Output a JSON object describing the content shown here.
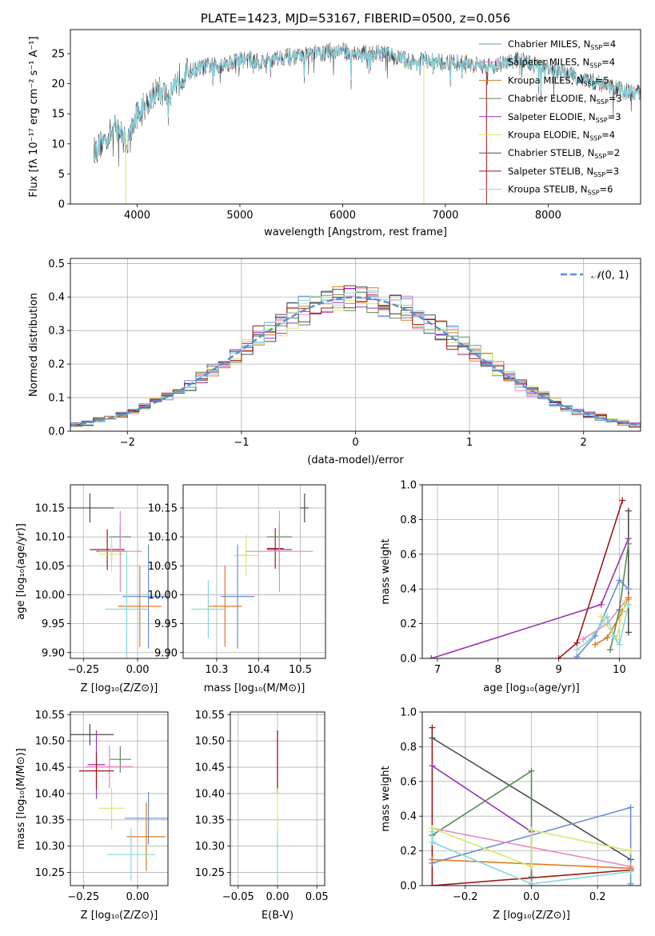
{
  "colors": {
    "Chabrier MILES": "#6b8ed6",
    "Salpeter MILES": "#e58ac0",
    "Kroupa MILES": "#e07820",
    "Chabrier ELODIE": "#5a8a5a",
    "Salpeter ELODIE": "#9a35b4",
    "Kroupa ELODIE": "#d8e86a",
    "Chabrier STELIB": "#4d4d4d",
    "Salpeter STELIB": "#a01818",
    "Kroupa STELIB": "#84d8dc",
    "gaussian": "#5a8fd6"
  },
  "chart_data": [
    {
      "id": "spectrum",
      "type": "line",
      "title": "PLATE=1423, MJD=53167, FIBERID=0500, z=0.056",
      "xlabel": "wavelength [Angstrom, rest frame]",
      "ylabel": "Flux [fλ 10⁻¹⁷ erg cm⁻² s⁻¹ A⁻¹]",
      "xlim": [
        3350,
        8900
      ],
      "ylim": [
        0,
        29
      ],
      "xticks": [
        4000,
        5000,
        6000,
        7000,
        8000
      ],
      "yticks": [
        0,
        5,
        10,
        15,
        20,
        25
      ],
      "grid": false,
      "legend_position": "top-right",
      "legend": [
        {
          "label": "Chabrier MILES, N_SSP=4",
          "base": "Chabrier MILES, N",
          "sub": "SSP",
          "tail": "=4",
          "color": "#6b8ed6"
        },
        {
          "label": "Salpeter MILES, N_SSP=4",
          "base": "Salpeter MILES, N",
          "sub": "SSP",
          "tail": "=4",
          "color": "#e58ac0"
        },
        {
          "label": "Kroupa MILES, N_SSP=5",
          "base": "Kroupa MILES, N",
          "sub": "SSP",
          "tail": "=5",
          "color": "#e07820"
        },
        {
          "label": "Chabrier ELODIE, N_SSP=3",
          "base": "Chabrier ELODIE, N",
          "sub": "SSP",
          "tail": "=3",
          "color": "#5a8a5a"
        },
        {
          "label": "Salpeter ELODIE, N_SSP=3",
          "base": "Salpeter ELODIE, N",
          "sub": "SSP",
          "tail": "=3",
          "color": "#9a35b4"
        },
        {
          "label": "Kroupa ELODIE, N_SSP=4",
          "base": "Kroupa ELODIE, N",
          "sub": "SSP",
          "tail": "=4",
          "color": "#d8e86a"
        },
        {
          "label": "Chabrier STELIB, N_SSP=2",
          "base": "Chabrier STELIB, N",
          "sub": "SSP",
          "tail": "=2",
          "color": "#4d4d4d"
        },
        {
          "label": "Salpeter STELIB, N_SSP=3",
          "base": "Salpeter STELIB, N",
          "sub": "SSP",
          "tail": "=3",
          "color": "#a01818"
        },
        {
          "label": "Kroupa STELIB, N_SSP=6",
          "base": "Kroupa STELIB, N",
          "sub": "SSP",
          "tail": "=6",
          "color": "#84d8dc"
        }
      ],
      "continuum_wavelength": [
        3600,
        3700,
        3800,
        3900,
        4000,
        4100,
        4200,
        4300,
        4400,
        4500,
        4600,
        4700,
        4800,
        4900,
        5000,
        5100,
        5200,
        5300,
        5400,
        5500,
        5600,
        5700,
        5800,
        5900,
        6000,
        6100,
        6200,
        6300,
        6400,
        6500,
        6600,
        6700,
        6800,
        6900,
        7000,
        7100,
        7200,
        7300,
        7400,
        7500,
        7600,
        7700,
        7800,
        7900,
        8000,
        8100,
        8200,
        8300,
        8400,
        8500,
        8600,
        8700,
        8800
      ],
      "continuum_flux": [
        9,
        11,
        13,
        10,
        15,
        17,
        19,
        18,
        21,
        22,
        22.5,
        23,
        23,
        23.5,
        24,
        24,
        23.5,
        24,
        24.5,
        24.5,
        24.5,
        25,
        25,
        25.5,
        25.5,
        25,
        25,
        25,
        25,
        24.5,
        24,
        23.5,
        24,
        23.5,
        23.5,
        23.5,
        23.5,
        23,
        23,
        23,
        23.5,
        24,
        23.5,
        23,
        22.5,
        22,
        21.5,
        21,
        20.5,
        20,
        19.5,
        19,
        18.5
      ],
      "spectrum_x_range": [
        3580,
        8900
      ],
      "drop_lines": [
        {
          "x": 3890,
          "y_from": 12,
          "y_to": 0,
          "series": "Kroupa ELODIE"
        },
        {
          "x": 6790,
          "y_from": 24,
          "y_to": 0,
          "series": "Kroupa ELODIE"
        },
        {
          "x": 7400,
          "y_from": 22,
          "y_to": 0,
          "series": "Salpeter STELIB"
        }
      ]
    },
    {
      "id": "residuals",
      "type": "histogram",
      "xlabel": "(data-model)/error",
      "ylabel": "Normed distribution",
      "xlim": [
        -2.5,
        2.5
      ],
      "ylim": [
        0,
        0.515
      ],
      "xticks": [
        -2,
        -1,
        0,
        1,
        2
      ],
      "yticks": [
        0.0,
        0.1,
        0.2,
        0.3,
        0.4,
        0.5
      ],
      "grid": true,
      "legend_position": "top-right",
      "legend": [
        {
          "label": "N(0,1)",
          "base": "𝒩",
          "sub": "",
          "tail": "(0, 1)",
          "color": "#5a8fd6"
        }
      ],
      "bin_edges_start": -2.5,
      "bin_width": 0.1,
      "gaussian": {
        "mu": 0,
        "sigma": 1
      }
    },
    {
      "id": "age-vs-Z",
      "type": "errorbar",
      "xlabel": "Z [log₁₀(Z/Z⊙)]",
      "ylabel": "age  [log₁₀(age/yr)]",
      "xlim": [
        -0.31,
        0.14
      ],
      "ylim": [
        9.89,
        10.19
      ],
      "xticks": [
        -0.25,
        0.0
      ],
      "xtick_labels": [
        "−0.25",
        "0.00"
      ],
      "yticks": [
        9.9,
        9.95,
        10.0,
        10.05,
        10.1,
        10.15
      ],
      "ytick_labels": [
        "9.90",
        "9.95",
        "10.00",
        "10.05",
        "10.10",
        "10.15"
      ],
      "grid": true,
      "points": [
        {
          "series": "Chabrier STELIB",
          "x": -0.22,
          "xerr": 0.11,
          "y": 10.15,
          "yerr": 0.025
        },
        {
          "series": "Chabrier ELODIE",
          "x": -0.08,
          "xerr": 0.05,
          "y": 10.1,
          "yerr": 0.02
        },
        {
          "series": "Salpeter ELODIE",
          "x": -0.12,
          "xerr": 0.07,
          "y": 10.075,
          "yerr": 0.015
        },
        {
          "series": "Salpeter STELIB",
          "x": -0.14,
          "xerr": 0.08,
          "y": 10.078,
          "yerr": 0.035
        },
        {
          "series": "Kroupa ELODIE",
          "x": -0.12,
          "xerr": 0.06,
          "y": 10.07,
          "yerr": 0.03
        },
        {
          "series": "Salpeter MILES",
          "x": -0.08,
          "xerr": 0.1,
          "y": 10.075,
          "yerr": 0.07
        },
        {
          "series": "Chabrier MILES",
          "x": 0.05,
          "xerr": 0.12,
          "y": 9.997,
          "yerr": 0.09
        },
        {
          "series": "Kroupa MILES",
          "x": 0.01,
          "xerr": 0.1,
          "y": 9.98,
          "yerr": 0.07
        },
        {
          "series": "Kroupa STELIB",
          "x": -0.05,
          "xerr": 0.1,
          "y": 9.975,
          "yerr": 0.1
        }
      ]
    },
    {
      "id": "age-vs-mass",
      "type": "errorbar",
      "xlabel": "mass [log₁₀(M/M⊙)]",
      "ylabel": "",
      "xlim": [
        10.22,
        10.56
      ],
      "ylim": [
        9.89,
        10.19
      ],
      "xticks": [
        10.3,
        10.4,
        10.5
      ],
      "xtick_labels": [
        "10.3",
        "10.4",
        "10.5"
      ],
      "yticks": [
        9.9,
        9.95,
        10.0,
        10.05,
        10.1,
        10.15
      ],
      "ytick_labels": [
        "9.90",
        "9.95",
        "10.00",
        "10.05",
        "10.10",
        "10.15"
      ],
      "grid": true,
      "points": [
        {
          "series": "Chabrier STELIB",
          "x": 10.51,
          "xerr": 0.01,
          "y": 10.15,
          "yerr": 0.025
        },
        {
          "series": "Chabrier ELODIE",
          "x": 10.45,
          "xerr": 0.03,
          "y": 10.1,
          "yerr": 0.02
        },
        {
          "series": "Salpeter ELODIE",
          "x": 10.45,
          "xerr": 0.03,
          "y": 10.078,
          "yerr": 0.035
        },
        {
          "series": "Salpeter STELIB",
          "x": 10.44,
          "xerr": 0.02,
          "y": 10.08,
          "yerr": 0.035
        },
        {
          "series": "Kroupa ELODIE",
          "x": 10.37,
          "xerr": 0.03,
          "y": 10.068,
          "yerr": 0.035
        },
        {
          "series": "Salpeter MILES",
          "x": 10.45,
          "xerr": 0.08,
          "y": 10.075,
          "yerr": 0.07
        },
        {
          "series": "Chabrier MILES",
          "x": 10.35,
          "xerr": 0.04,
          "y": 9.997,
          "yerr": 0.09
        },
        {
          "series": "Kroupa MILES",
          "x": 10.32,
          "xerr": 0.04,
          "y": 9.98,
          "yerr": 0.07
        },
        {
          "series": "Kroupa STELIB",
          "x": 10.28,
          "xerr": 0.04,
          "y": 9.975,
          "yerr": 0.05
        }
      ]
    },
    {
      "id": "weight-vs-age",
      "type": "line",
      "xlabel": "age  [log₁₀(age/yr)]",
      "ylabel": "mass weight",
      "xlim": [
        6.75,
        10.35
      ],
      "ylim": [
        0,
        1.0
      ],
      "xticks": [
        7,
        8,
        9,
        10
      ],
      "xtick_labels": [
        "7",
        "8",
        "9",
        "10"
      ],
      "yticks": [
        0,
        0.2,
        0.4,
        0.6,
        0.8,
        1.0
      ],
      "ytick_labels": [
        "0.0",
        "0.2",
        "0.4",
        "0.6",
        "0.8",
        "1.0"
      ],
      "grid": true,
      "series": [
        {
          "name": "Salpeter ELODIE",
          "x": [
            6.9,
            9.7,
            10.15
          ],
          "y": [
            0.0,
            0.31,
            0.69
          ]
        },
        {
          "name": "Salpeter STELIB",
          "x": [
            9.0,
            9.3,
            10.05
          ],
          "y": [
            0.0,
            0.09,
            0.91
          ]
        },
        {
          "name": "Chabrier STELIB",
          "x": [
            10.15,
            10.15
          ],
          "y": [
            0.85,
            0.15
          ]
        },
        {
          "name": "Chabrier MILES",
          "x": [
            9.3,
            9.6,
            10.0,
            10.15
          ],
          "y": [
            0.01,
            0.13,
            0.45,
            0.4
          ]
        },
        {
          "name": "Salpeter MILES",
          "x": [
            9.4,
            9.8,
            10.1,
            10.15
          ],
          "y": [
            0.11,
            0.2,
            0.33,
            0.34
          ]
        },
        {
          "name": "Kroupa MILES",
          "x": [
            9.6,
            9.8,
            10.05,
            10.15
          ],
          "y": [
            0.08,
            0.12,
            0.27,
            0.35
          ]
        },
        {
          "name": "Chabrier ELODIE",
          "x": [
            9.85,
            10.0,
            10.15
          ],
          "y": [
            0.05,
            0.28,
            0.66
          ]
        },
        {
          "name": "Kroupa ELODIE",
          "x": [
            9.7,
            9.95,
            10.1
          ],
          "y": [
            0.24,
            0.11,
            0.33
          ]
        },
        {
          "name": "Kroupa STELIB",
          "x": [
            9.3,
            9.5,
            9.7,
            9.8,
            9.9,
            10.0,
            10.15
          ],
          "y": [
            0.05,
            0.1,
            0.2,
            0.24,
            0.13,
            0.08,
            0.31
          ]
        }
      ]
    },
    {
      "id": "mass-vs-Z",
      "type": "errorbar",
      "xlabel": "Z [log₁₀(Z/Z⊙)]",
      "ylabel": "mass [log₁₀(M/M⊙)]",
      "xlim": [
        -0.31,
        0.14
      ],
      "ylim": [
        10.225,
        10.555
      ],
      "xticks": [
        -0.25,
        0.0
      ],
      "xtick_labels": [
        "−0.25",
        "0.00"
      ],
      "yticks": [
        10.25,
        10.3,
        10.35,
        10.4,
        10.45,
        10.5,
        10.55
      ],
      "ytick_labels": [
        "10.25",
        "10.30",
        "10.35",
        "10.40",
        "10.45",
        "10.50",
        "10.55"
      ],
      "grid": true,
      "points": [
        {
          "series": "Chabrier STELIB",
          "x": -0.22,
          "xerr": 0.11,
          "y": 10.512,
          "yerr": 0.02
        },
        {
          "series": "Chabrier ELODIE",
          "x": -0.08,
          "xerr": 0.05,
          "y": 10.465,
          "yerr": 0.025
        },
        {
          "series": "Salpeter ELODIE",
          "x": -0.19,
          "xerr": 0.04,
          "y": 10.455,
          "yerr": 0.065
        },
        {
          "series": "Salpeter MILES",
          "x": -0.13,
          "xerr": 0.11,
          "y": 10.451,
          "yerr": 0.04
        },
        {
          "series": "Salpeter STELIB",
          "x": -0.19,
          "xerr": 0.08,
          "y": 10.443,
          "yerr": 0.035
        },
        {
          "series": "Kroupa ELODIE",
          "x": -0.12,
          "xerr": 0.06,
          "y": 10.372,
          "yerr": 0.04
        },
        {
          "series": "Chabrier MILES",
          "x": 0.05,
          "xerr": 0.11,
          "y": 10.353,
          "yerr": 0.05
        },
        {
          "series": "Kroupa MILES",
          "x": 0.04,
          "xerr": 0.09,
          "y": 10.318,
          "yerr": 0.065
        },
        {
          "series": "Kroupa STELIB",
          "x": -0.03,
          "xerr": 0.11,
          "y": 10.284,
          "yerr": 0.05
        }
      ]
    },
    {
      "id": "mass-vs-ebv",
      "type": "errorbar",
      "xlabel": "E(B-V)",
      "ylabel": "",
      "xlim": [
        -0.06,
        0.06
      ],
      "ylim": [
        10.225,
        10.555
      ],
      "xticks": [
        -0.05,
        0.0,
        0.05
      ],
      "xtick_labels": [
        "−0.05",
        "0.00",
        "0.05"
      ],
      "yticks": [
        10.25,
        10.3,
        10.35,
        10.4,
        10.45,
        10.5,
        10.55
      ],
      "ytick_labels": [
        "10.25",
        "10.30",
        "10.35",
        "10.40",
        "10.45",
        "10.50",
        "10.55"
      ],
      "grid": true,
      "points": [
        {
          "series": "Salpeter ELODIE",
          "x": 0,
          "xerr": 0,
          "y": 10.46,
          "yerr": 0.06
        },
        {
          "series": "Salpeter STELIB",
          "x": 0,
          "xerr": 0,
          "y": 10.46,
          "yerr": 0.06
        },
        {
          "series": "Kroupa ELODIE",
          "x": 0,
          "xerr": 0,
          "y": 10.37,
          "yerr": 0.04
        },
        {
          "series": "Kroupa STELIB",
          "x": 0,
          "xerr": 0,
          "y": 10.28,
          "yerr": 0.05
        }
      ]
    },
    {
      "id": "weight-vs-Z",
      "type": "line",
      "xlabel": "Z [log₁₀(Z/Z⊙)]",
      "ylabel": "mass weight",
      "xlim": [
        -0.33,
        0.33
      ],
      "ylim": [
        0,
        1.0
      ],
      "xticks": [
        -0.2,
        0.0,
        0.2
      ],
      "xtick_labels": [
        "−0.2",
        "0.0",
        "0.2"
      ],
      "yticks": [
        0,
        0.2,
        0.4,
        0.6,
        0.8,
        1.0
      ],
      "ytick_labels": [
        "0.0",
        "0.2",
        "0.4",
        "0.6",
        "0.8",
        "1.0"
      ],
      "grid": true,
      "series": [
        {
          "name": "Salpeter STELIB",
          "x": [
            -0.3,
            -0.3,
            0.3
          ],
          "y": [
            0.91,
            0.0,
            0.09
          ]
        },
        {
          "name": "Chabrier STELIB",
          "x": [
            -0.3,
            0.3
          ],
          "y": [
            0.85,
            0.15
          ]
        },
        {
          "name": "Salpeter ELODIE",
          "x": [
            -0.3,
            0.0,
            0.0
          ],
          "y": [
            0.69,
            0.31,
            0.0
          ]
        },
        {
          "name": "Chabrier ELODIE",
          "x": [
            -0.3,
            0.0,
            0.0
          ],
          "y": [
            0.29,
            0.66,
            0.05
          ]
        },
        {
          "name": "Chabrier MILES",
          "x": [
            -0.3,
            0.3,
            0.3
          ],
          "y": [
            0.13,
            0.45,
            0.01
          ]
        },
        {
          "name": "Salpeter MILES",
          "x": [
            -0.3,
            0.3
          ],
          "y": [
            0.33,
            0.11
          ]
        },
        {
          "name": "Kroupa MILES",
          "x": [
            -0.3,
            0.3
          ],
          "y": [
            0.15,
            0.1
          ]
        },
        {
          "name": "Kroupa ELODIE",
          "x": [
            -0.3,
            0.0,
            0.0,
            0.3
          ],
          "y": [
            0.33,
            0.11,
            0.32,
            0.2
          ]
        },
        {
          "name": "Kroupa STELIB",
          "x": [
            -0.3,
            -0.3,
            0.0,
            0.3
          ],
          "y": [
            0.31,
            0.25,
            0.01,
            0.08
          ]
        }
      ]
    }
  ]
}
